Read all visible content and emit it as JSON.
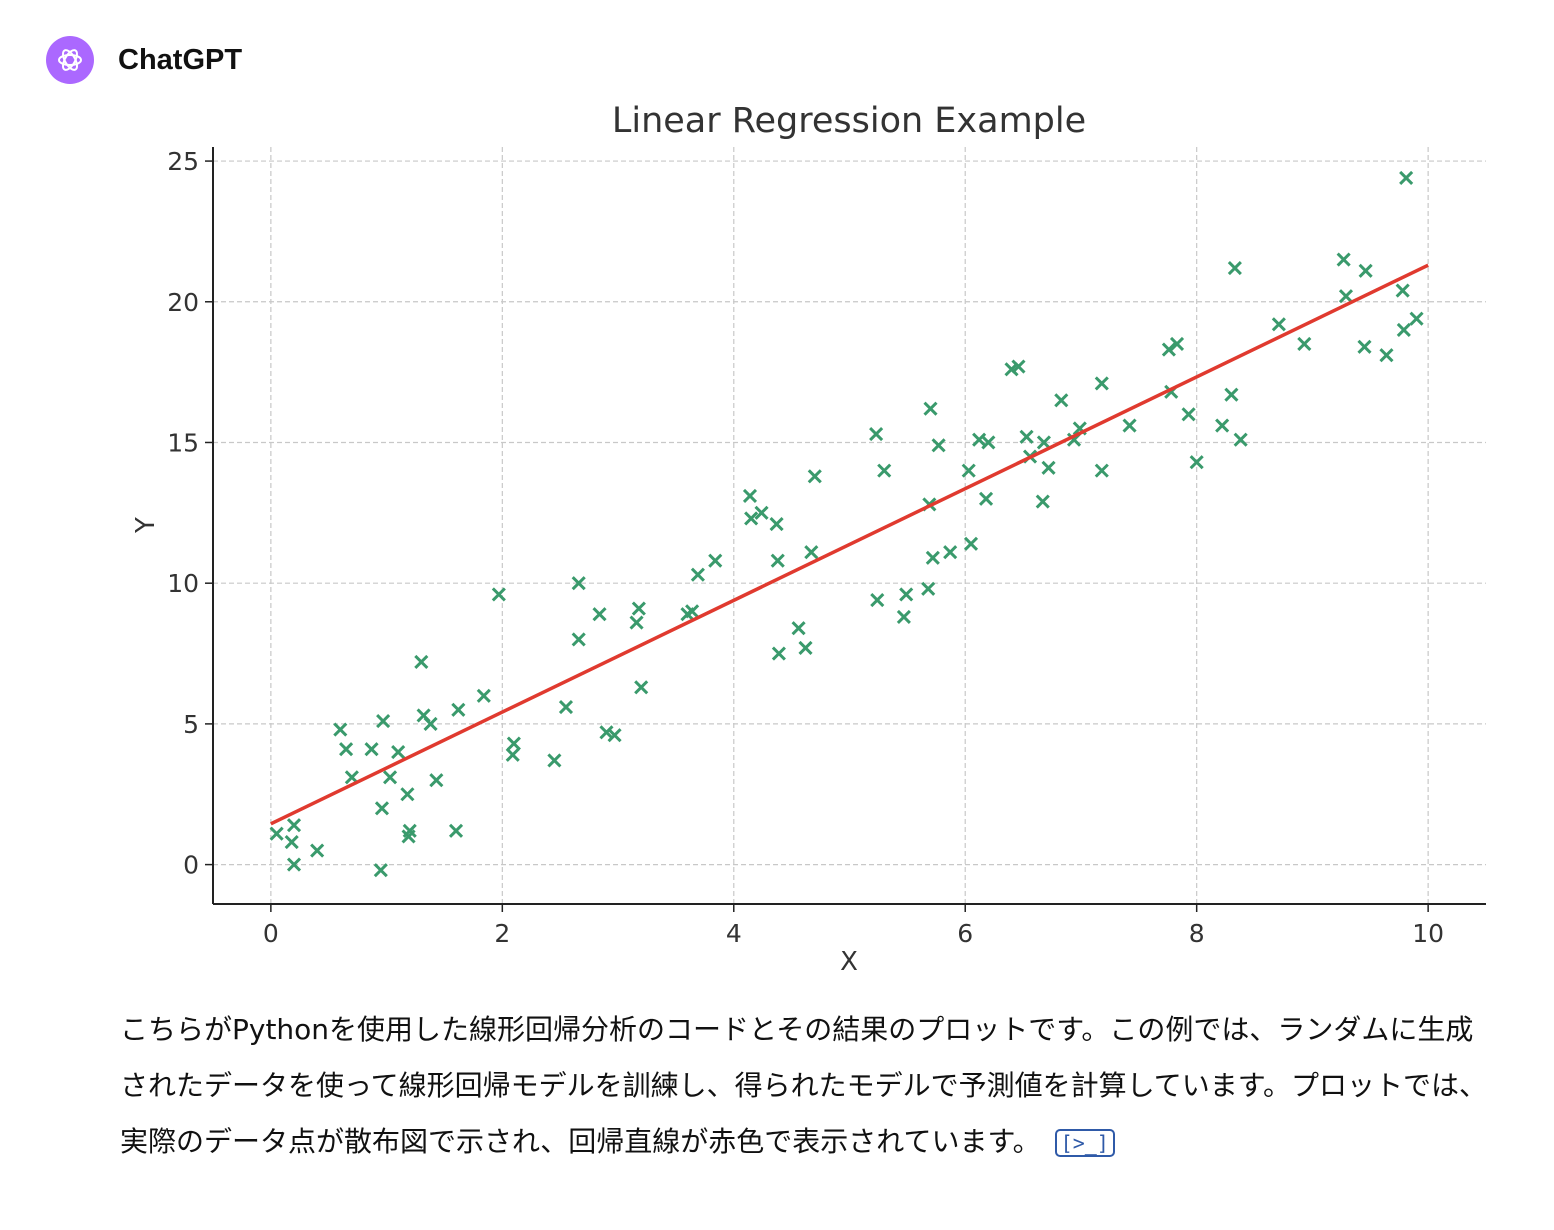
{
  "header": {
    "assistant_name": "ChatGPT",
    "avatar_icon": "openai-logo-icon",
    "avatar_color": "#ab68ff"
  },
  "chart_data": {
    "type": "scatter",
    "title": "Linear Regression Example",
    "xlabel": "X",
    "ylabel": "Y",
    "xlim": [
      -0.5,
      10.5
    ],
    "ylim": [
      -1.4,
      25.5
    ],
    "xticks": [
      0,
      2,
      4,
      6,
      8,
      10
    ],
    "yticks": [
      0,
      5,
      10,
      15,
      20,
      25
    ],
    "grid": true,
    "colors": {
      "points": "#3a9a6c",
      "line": "#e03a2f",
      "grid": "#c8c8c8",
      "text": "#333333"
    },
    "series": [
      {
        "marker": "x",
        "points": [
          [
            0.05,
            1.1
          ],
          [
            0.18,
            0.8
          ],
          [
            0.2,
            1.4
          ],
          [
            0.2,
            0.0
          ],
          [
            0.4,
            0.5
          ],
          [
            0.6,
            4.8
          ],
          [
            0.65,
            4.1
          ],
          [
            0.7,
            3.1
          ],
          [
            0.87,
            4.1
          ],
          [
            0.95,
            -0.2
          ],
          [
            0.96,
            2.0
          ],
          [
            0.97,
            5.1
          ],
          [
            1.03,
            3.1
          ],
          [
            1.1,
            4.0
          ],
          [
            1.18,
            2.5
          ],
          [
            1.19,
            1.0
          ],
          [
            1.2,
            1.2
          ],
          [
            1.3,
            7.2
          ],
          [
            1.32,
            5.3
          ],
          [
            1.38,
            5.0
          ],
          [
            1.43,
            3.0
          ],
          [
            1.6,
            1.2
          ],
          [
            1.62,
            5.5
          ],
          [
            1.84,
            6.0
          ],
          [
            1.97,
            9.6
          ],
          [
            2.09,
            3.9
          ],
          [
            2.1,
            4.3
          ],
          [
            2.45,
            3.7
          ],
          [
            2.55,
            5.6
          ],
          [
            2.66,
            8.0
          ],
          [
            2.66,
            10.0
          ],
          [
            2.84,
            8.9
          ],
          [
            2.9,
            4.7
          ],
          [
            2.97,
            4.6
          ],
          [
            3.16,
            8.6
          ],
          [
            3.18,
            9.1
          ],
          [
            3.2,
            6.3
          ],
          [
            3.6,
            8.9
          ],
          [
            3.64,
            9.0
          ],
          [
            3.69,
            10.3
          ],
          [
            3.84,
            10.8
          ],
          [
            4.14,
            13.1
          ],
          [
            4.15,
            12.3
          ],
          [
            4.24,
            12.5
          ],
          [
            4.37,
            12.1
          ],
          [
            4.38,
            10.8
          ],
          [
            4.39,
            7.5
          ],
          [
            4.56,
            8.4
          ],
          [
            4.62,
            7.7
          ],
          [
            4.67,
            11.1
          ],
          [
            4.7,
            13.8
          ],
          [
            5.23,
            15.3
          ],
          [
            5.24,
            9.4
          ],
          [
            5.3,
            14.0
          ],
          [
            5.47,
            8.8
          ],
          [
            5.49,
            9.6
          ],
          [
            5.68,
            9.8
          ],
          [
            5.69,
            12.8
          ],
          [
            5.7,
            16.2
          ],
          [
            5.72,
            10.9
          ],
          [
            5.77,
            14.9
          ],
          [
            5.87,
            11.1
          ],
          [
            6.03,
            14.0
          ],
          [
            6.05,
            11.4
          ],
          [
            6.12,
            15.1
          ],
          [
            6.18,
            13.0
          ],
          [
            6.2,
            15.0
          ],
          [
            6.4,
            17.6
          ],
          [
            6.46,
            17.7
          ],
          [
            6.53,
            15.2
          ],
          [
            6.56,
            14.5
          ],
          [
            6.67,
            12.9
          ],
          [
            6.68,
            15.0
          ],
          [
            6.72,
            14.1
          ],
          [
            6.83,
            16.5
          ],
          [
            6.94,
            15.1
          ],
          [
            6.99,
            15.5
          ],
          [
            7.18,
            14.0
          ],
          [
            7.18,
            17.1
          ],
          [
            7.42,
            15.6
          ],
          [
            7.76,
            18.3
          ],
          [
            7.78,
            16.8
          ],
          [
            7.83,
            18.5
          ],
          [
            7.93,
            16.0
          ],
          [
            8.0,
            14.3
          ],
          [
            8.22,
            15.6
          ],
          [
            8.3,
            16.7
          ],
          [
            8.33,
            21.2
          ],
          [
            8.38,
            15.1
          ],
          [
            8.71,
            19.2
          ],
          [
            8.93,
            18.5
          ],
          [
            9.27,
            21.5
          ],
          [
            9.29,
            20.2
          ],
          [
            9.45,
            18.4
          ],
          [
            9.46,
            21.1
          ],
          [
            9.64,
            18.1
          ],
          [
            9.78,
            20.4
          ],
          [
            9.79,
            19.0
          ],
          [
            9.81,
            24.4
          ],
          [
            9.9,
            19.4
          ]
        ]
      }
    ],
    "regression_line": [
      [
        0,
        1.45
      ],
      [
        10,
        21.3
      ]
    ]
  },
  "message": {
    "text": "こちらがPythonを使用した線形回帰分析のコードとその結果のプロットです。この例では、ランダムに生成されたデータを使って線形回帰モデルを訓練し、得られたモデルで予測値を計算しています。プロットでは、実際のデータ点が散布図で示され、回帰直線が赤色で表示されています。",
    "code_link_label": "[>_]"
  }
}
